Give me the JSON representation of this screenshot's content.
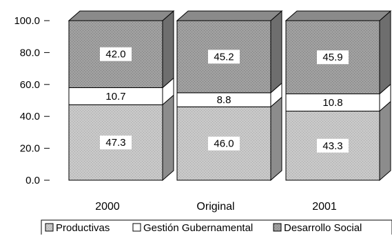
{
  "chart_data": {
    "type": "bar",
    "stacked": true,
    "three_d": true,
    "title": "",
    "xlabel": "",
    "ylabel": "",
    "ylim": [
      0,
      100
    ],
    "y_ticks": [
      "0.0",
      "20.0",
      "40.0",
      "60.0",
      "80.0",
      "100.0"
    ],
    "categories": [
      "2000",
      "Original",
      "2001"
    ],
    "series": [
      {
        "name": "Productivas",
        "values": [
          47.3,
          46.0,
          43.3
        ],
        "labels": [
          "47.3",
          "46.0",
          "43.3"
        ],
        "color": "#c0c0c0"
      },
      {
        "name": "Gestión Gubernamental",
        "values": [
          10.7,
          8.8,
          10.8
        ],
        "labels": [
          "10.7",
          "8.8",
          "10.8"
        ],
        "color": "#ffffff"
      },
      {
        "name": "Desarrollo Social",
        "values": [
          42.0,
          45.2,
          45.9
        ],
        "labels": [
          "42.0",
          "45.2",
          "45.9"
        ],
        "color": "#969696"
      }
    ],
    "legend": {
      "position": "bottom"
    },
    "grid": false
  }
}
